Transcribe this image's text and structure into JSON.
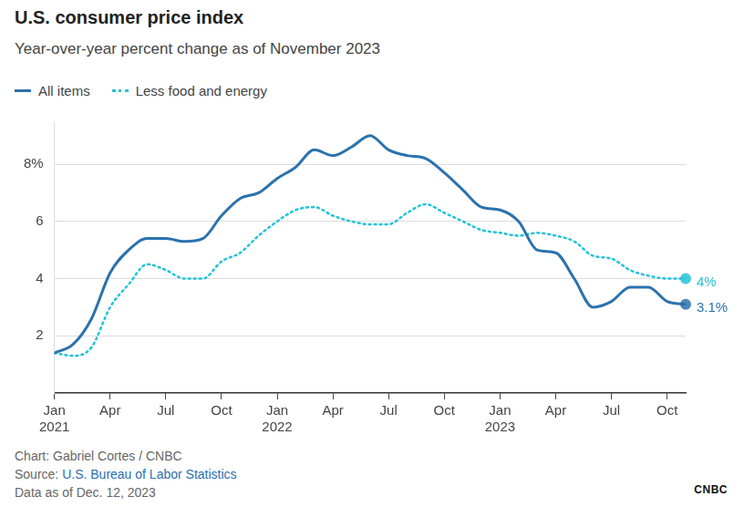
{
  "chart_data": {
    "type": "line",
    "title": "U.S. consumer price index",
    "subtitle": "Year-over-year percent change as of November 2023",
    "categories": [
      "Jan 2021",
      null,
      null,
      "Apr",
      null,
      null,
      "Jul",
      null,
      null,
      "Oct",
      null,
      null,
      "Jan 2022",
      null,
      null,
      "Apr",
      null,
      null,
      "Jul",
      null,
      null,
      "Oct",
      null,
      null,
      "Jan 2023",
      null,
      null,
      "Apr",
      null,
      null,
      "Jul",
      null,
      null,
      "Oct",
      null
    ],
    "series": [
      {
        "name": "All items",
        "color": "#2b72ad",
        "line_style": "solid",
        "values": [
          1.4,
          1.7,
          2.6,
          4.2,
          5.0,
          5.4,
          5.4,
          5.3,
          5.4,
          6.2,
          6.8,
          7.0,
          7.5,
          7.9,
          8.5,
          8.3,
          8.6,
          9.0,
          8.5,
          8.3,
          8.2,
          7.7,
          7.1,
          6.5,
          6.4,
          6.0,
          5.0,
          4.9,
          4.0,
          3.0,
          3.2,
          3.7,
          3.7,
          3.2,
          3.1
        ],
        "value_labels": [
          null,
          null,
          null,
          null,
          null,
          null,
          null,
          null,
          null,
          null,
          null,
          null,
          null,
          null,
          null,
          null,
          null,
          null,
          null,
          null,
          null,
          null,
          null,
          null,
          null,
          null,
          null,
          null,
          null,
          null,
          null,
          null,
          null,
          null,
          "3.1%"
        ]
      },
      {
        "name": "Less food and energy",
        "color": "#22c3d8",
        "line_style": "dotted",
        "values": [
          1.4,
          1.3,
          1.6,
          3.0,
          3.8,
          4.5,
          4.3,
          4.0,
          4.0,
          4.6,
          4.9,
          5.5,
          6.0,
          6.4,
          6.5,
          6.2,
          6.0,
          5.9,
          5.9,
          6.3,
          6.6,
          6.3,
          6.0,
          5.7,
          5.6,
          5.5,
          5.6,
          5.5,
          5.3,
          4.8,
          4.7,
          4.3,
          4.1,
          4.0,
          4.0
        ],
        "value_labels": [
          null,
          null,
          null,
          null,
          null,
          null,
          null,
          null,
          null,
          null,
          null,
          null,
          null,
          null,
          null,
          null,
          null,
          null,
          null,
          null,
          null,
          null,
          null,
          null,
          null,
          null,
          null,
          null,
          null,
          null,
          null,
          null,
          null,
          null,
          "4%"
        ]
      }
    ],
    "ylim": [
      0,
      9.5
    ],
    "yticks": [
      2,
      4,
      6,
      {
        "value": 8,
        "label": "8%"
      }
    ],
    "grid": true,
    "credit": "Chart: Gabriel Cortes / CNBC",
    "source_label": "Source:",
    "source": "U.S. Bureau of Labor Statistics",
    "data_note": "Data as of Dec. 12, 2023",
    "logo": "CNBC"
  }
}
